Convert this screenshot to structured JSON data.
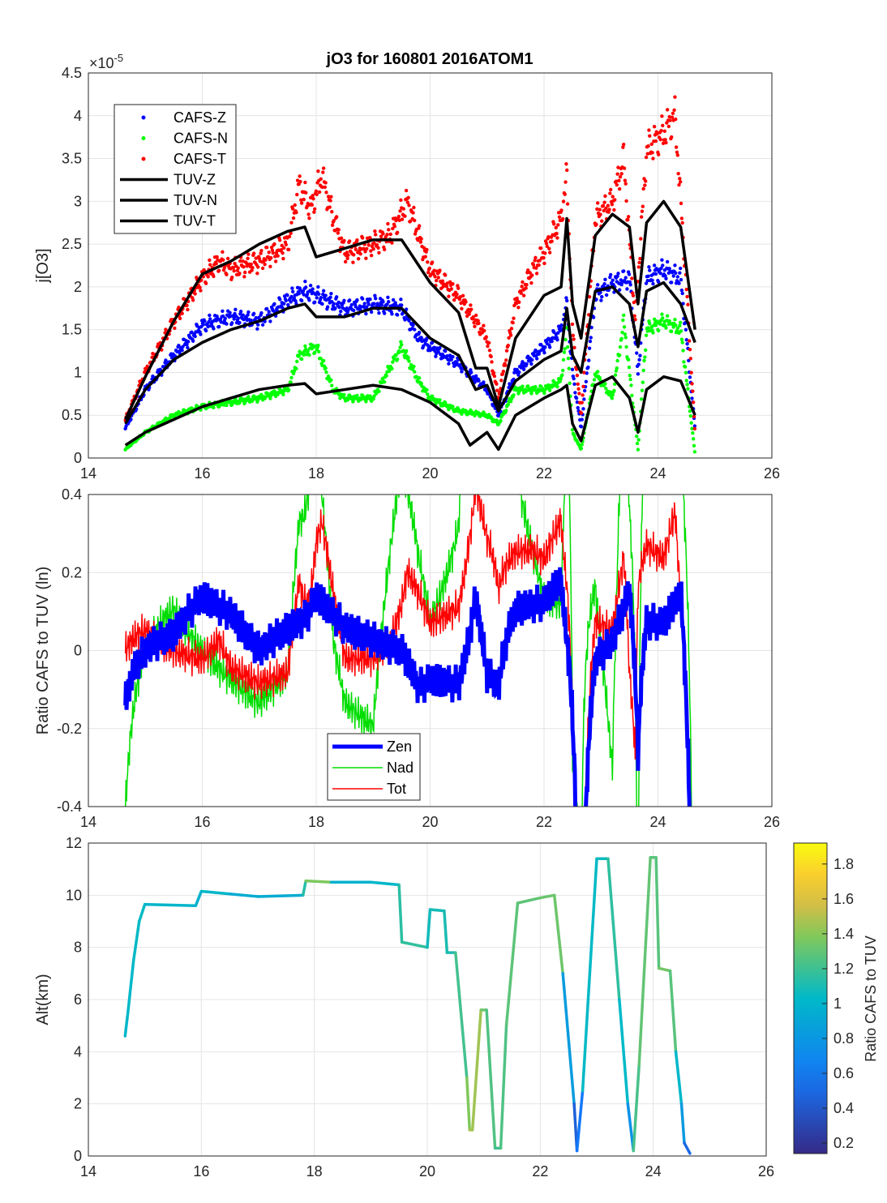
{
  "chart_data": [
    {
      "type": "scatter",
      "title": "jO3 for 160801 2016ATOM1",
      "xlabel": "",
      "ylabel": "j[O3]",
      "exponent_label": "×10^-5",
      "exponent_base": "×10",
      "exponent_power": "-5",
      "xlim": [
        14,
        26
      ],
      "ylim": [
        0,
        4.5
      ],
      "xticks": [
        "14",
        "16",
        "18",
        "20",
        "22",
        "24",
        "26"
      ],
      "yticks": [
        "0",
        "0.5",
        "1",
        "1.5",
        "2",
        "2.5",
        "3",
        "3.5",
        "4",
        "4.5"
      ],
      "grid": true,
      "legend_position": "top-left",
      "series": [
        {
          "name": "CAFS-Z",
          "style": "dots",
          "color": "#0000ff",
          "x": [
            14.65,
            15,
            15.5,
            16,
            16.5,
            17,
            17.5,
            17.8,
            18,
            18.5,
            19,
            19.5,
            19.8,
            20,
            20.5,
            21,
            21.2,
            21.5,
            22,
            22.3,
            22.4,
            22.5,
            22.65,
            22.9,
            23.2,
            23.5,
            23.65,
            23.8,
            24.1,
            24.4,
            24.65
          ],
          "y": [
            0.35,
            0.8,
            1.2,
            1.55,
            1.65,
            1.6,
            1.85,
            1.95,
            1.9,
            1.75,
            1.8,
            1.75,
            1.4,
            1.3,
            1.1,
            0.8,
            0.5,
            1.0,
            1.3,
            1.5,
            1.8,
            1.0,
            0.35,
            1.9,
            2.05,
            2.1,
            1.0,
            2.1,
            2.2,
            2.1,
            0.35
          ]
        },
        {
          "name": "CAFS-N",
          "style": "dots",
          "color": "#00ff00",
          "x": [
            14.65,
            15,
            15.5,
            16,
            16.5,
            17,
            17.5,
            17.7,
            18,
            18.3,
            18.5,
            19,
            19.5,
            19.8,
            20,
            20.5,
            21,
            21.2,
            21.5,
            22,
            22.3,
            22.4,
            22.5,
            22.65,
            22.9,
            23.2,
            23.4,
            23.65,
            23.8,
            24.1,
            24.4,
            24.65
          ],
          "y": [
            0.1,
            0.3,
            0.5,
            0.6,
            0.65,
            0.7,
            0.8,
            1.2,
            1.3,
            0.8,
            0.7,
            0.7,
            1.3,
            0.9,
            0.7,
            0.55,
            0.5,
            0.4,
            0.8,
            0.8,
            0.9,
            1.5,
            0.3,
            0.1,
            1.0,
            0.7,
            1.6,
            0.1,
            1.5,
            1.6,
            1.5,
            0.05
          ]
        },
        {
          "name": "CAFS-T",
          "style": "dots",
          "color": "#ff0000",
          "x": [
            14.65,
            15,
            15.5,
            16,
            16.3,
            16.5,
            17,
            17.5,
            17.7,
            17.9,
            18.1,
            18.3,
            18.5,
            19,
            19.3,
            19.6,
            19.8,
            20,
            20.5,
            21,
            21.2,
            21.5,
            21.8,
            22,
            22.3,
            22.4,
            22.5,
            22.65,
            22.9,
            23.2,
            23.4,
            23.6,
            23.8,
            24.1,
            24.3,
            24.5,
            24.65
          ],
          "y": [
            0.45,
            1.0,
            1.6,
            2.1,
            2.3,
            2.2,
            2.3,
            2.5,
            3.2,
            2.9,
            3.3,
            2.8,
            2.4,
            2.5,
            2.6,
            3.0,
            2.6,
            2.2,
            1.9,
            1.4,
            0.7,
            1.8,
            2.2,
            2.4,
            2.8,
            3.3,
            1.5,
            0.5,
            2.8,
            3.0,
            3.5,
            1.6,
            3.6,
            3.8,
            4.0,
            2.0,
            0.3
          ]
        },
        {
          "name": "TUV-Z",
          "style": "line",
          "color": "#000000",
          "x": [
            14.65,
            15,
            15.5,
            16,
            16.5,
            17,
            17.5,
            17.8,
            18,
            18.5,
            19,
            19.5,
            20,
            20.5,
            20.8,
            21,
            21.2,
            21.5,
            22,
            22.3,
            22.4,
            22.5,
            22.65,
            22.9,
            23.2,
            23.5,
            23.65,
            23.8,
            24.1,
            24.4,
            24.65
          ],
          "y": [
            0.4,
            0.8,
            1.15,
            1.35,
            1.5,
            1.6,
            1.75,
            1.8,
            1.65,
            1.65,
            1.75,
            1.75,
            1.4,
            1.2,
            0.8,
            0.85,
            0.55,
            0.9,
            1.15,
            1.25,
            1.75,
            1.2,
            1.0,
            1.95,
            2.0,
            1.8,
            1.3,
            1.95,
            2.05,
            1.8,
            1.35
          ]
        },
        {
          "name": "TUV-N",
          "style": "line",
          "color": "#000000",
          "x": [
            14.65,
            15,
            15.5,
            16,
            16.5,
            17,
            17.5,
            17.8,
            18,
            18.5,
            19,
            19.5,
            20,
            20.5,
            20.7,
            21,
            21.2,
            21.5,
            22,
            22.3,
            22.4,
            22.5,
            22.65,
            22.9,
            23.2,
            23.5,
            23.65,
            23.8,
            24.1,
            24.4,
            24.65
          ],
          "y": [
            0.15,
            0.3,
            0.45,
            0.6,
            0.7,
            0.8,
            0.85,
            0.87,
            0.75,
            0.8,
            0.85,
            0.8,
            0.65,
            0.4,
            0.15,
            0.3,
            0.1,
            0.5,
            0.7,
            0.8,
            0.85,
            0.4,
            0.2,
            0.85,
            0.95,
            0.7,
            0.3,
            0.8,
            0.95,
            0.9,
            0.5
          ]
        },
        {
          "name": "TUV-T",
          "style": "line",
          "color": "#000000",
          "x": [
            14.65,
            15,
            15.5,
            16,
            16.5,
            17,
            17.5,
            17.8,
            18,
            18.5,
            19,
            19.5,
            20,
            20.5,
            20.8,
            21,
            21.2,
            21.5,
            22,
            22.3,
            22.4,
            22.5,
            22.65,
            22.9,
            23.2,
            23.5,
            23.65,
            23.8,
            24.1,
            24.4,
            24.65
          ],
          "y": [
            0.45,
            0.95,
            1.6,
            2.15,
            2.3,
            2.5,
            2.65,
            2.7,
            2.35,
            2.45,
            2.55,
            2.55,
            2.05,
            1.7,
            1.05,
            1.05,
            0.6,
            1.4,
            1.9,
            2.0,
            2.8,
            1.8,
            1.4,
            2.6,
            2.85,
            2.7,
            1.8,
            2.75,
            3.0,
            2.7,
            1.5
          ]
        }
      ]
    },
    {
      "type": "line",
      "title": "",
      "xlabel": "",
      "ylabel": "Ratio CAFS to TUV (ln)",
      "xlim": [
        14,
        26
      ],
      "ylim": [
        -0.4,
        0.4
      ],
      "xticks": [
        "14",
        "16",
        "18",
        "20",
        "22",
        "24",
        "26"
      ],
      "yticks": [
        "-0.4",
        "-0.2",
        "0",
        "0.2",
        "0.4"
      ],
      "grid": true,
      "legend_position": "bottom-center",
      "series": [
        {
          "name": "Zen",
          "color": "#0000ff",
          "derived": "ln(CAFS-Z/TUV-Z)"
        },
        {
          "name": "Nad",
          "color": "#00dd00",
          "derived": "ln(CAFS-N/TUV-N)"
        },
        {
          "name": "Tot",
          "color": "#ff0000",
          "derived": "ln(CAFS-T/TUV-T)"
        }
      ]
    },
    {
      "type": "line",
      "title": "",
      "xlabel": "",
      "ylabel": "Alt(km)",
      "xlim": [
        14,
        26
      ],
      "ylim": [
        0,
        12
      ],
      "xticks": [
        "14",
        "16",
        "18",
        "20",
        "22",
        "24",
        "26"
      ],
      "yticks": [
        "0",
        "2",
        "4",
        "6",
        "8",
        "10",
        "12"
      ],
      "grid": true,
      "colorbar": {
        "label": "Ratio CAFS to TUV",
        "range": [
          0.14,
          1.92
        ],
        "ticks": [
          "0.2",
          "0.4",
          "0.6",
          "0.8",
          "1",
          "1.2",
          "1.4",
          "1.6",
          "1.8"
        ]
      },
      "x": [
        14.65,
        14.7,
        14.8,
        14.9,
        15,
        15.9,
        16,
        16.5,
        17,
        17.8,
        17.85,
        18.3,
        19,
        19.5,
        19.55,
        20,
        20.05,
        20.3,
        20.35,
        20.5,
        20.7,
        20.75,
        20.8,
        20.95,
        21.05,
        21.2,
        21.3,
        21.4,
        21.6,
        22,
        22.25,
        22.4,
        22.6,
        22.65,
        22.75,
        23.0,
        23.2,
        23.4,
        23.55,
        23.65,
        23.75,
        23.95,
        24.05,
        24.1,
        24.3,
        24.4,
        24.5,
        24.55,
        24.65
      ],
      "y": [
        4.6,
        5.5,
        7.5,
        9,
        9.65,
        9.6,
        10.15,
        10.05,
        9.95,
        10,
        10.55,
        10.5,
        10.5,
        10.4,
        8.2,
        8,
        9.45,
        9.4,
        7.8,
        7.8,
        3,
        1,
        1,
        5.6,
        5.6,
        0.3,
        0.3,
        5,
        9.7,
        9.9,
        10,
        7,
        2,
        0.2,
        2.5,
        11.4,
        11.4,
        6,
        2,
        0.2,
        3.5,
        11.45,
        11.45,
        7.2,
        7.1,
        4,
        2,
        0.5,
        0.1
      ]
    }
  ]
}
